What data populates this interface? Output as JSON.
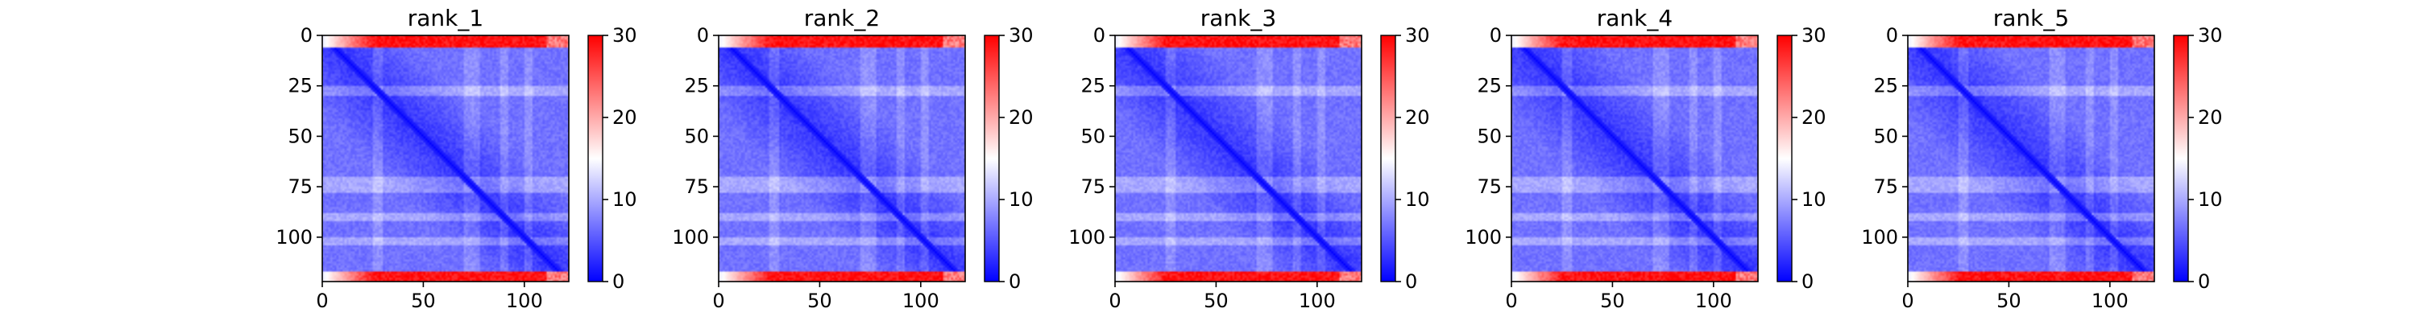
{
  "chart_data": [
    {
      "type": "heatmap",
      "title": "rank_1",
      "xlabel": "",
      "ylabel": "",
      "x_ticks": [
        0,
        50,
        100
      ],
      "y_ticks": [
        0,
        25,
        50,
        75,
        100
      ],
      "xlim": [
        0,
        122
      ],
      "ylim": [
        122,
        0
      ],
      "colorbar": {
        "range": [
          0,
          30
        ],
        "ticks": [
          0,
          10,
          20,
          30
        ],
        "colormap": "bwr"
      },
      "pattern": {
        "size": 122,
        "diagonal_value": 0,
        "red_rows": [
          [
            0,
            6
          ],
          [
            117,
            122
          ]
        ],
        "light_bands": [
          [
            25,
            30
          ],
          [
            70,
            78
          ],
          [
            88,
            92
          ],
          [
            100,
            104
          ]
        ]
      }
    },
    {
      "type": "heatmap",
      "title": "rank_2",
      "xlabel": "",
      "ylabel": "",
      "x_ticks": [
        0,
        50,
        100
      ],
      "y_ticks": [
        0,
        25,
        50,
        75,
        100
      ],
      "xlim": [
        0,
        122
      ],
      "ylim": [
        122,
        0
      ],
      "colorbar": {
        "range": [
          0,
          30
        ],
        "ticks": [
          0,
          10,
          20,
          30
        ],
        "colormap": "bwr"
      },
      "pattern": {
        "size": 122,
        "diagonal_value": 0,
        "red_rows": [
          [
            0,
            6
          ],
          [
            117,
            122
          ]
        ],
        "light_bands": [
          [
            25,
            30
          ],
          [
            70,
            78
          ],
          [
            88,
            92
          ],
          [
            100,
            104
          ]
        ]
      }
    },
    {
      "type": "heatmap",
      "title": "rank_3",
      "xlabel": "",
      "ylabel": "",
      "x_ticks": [
        0,
        50,
        100
      ],
      "y_ticks": [
        0,
        25,
        50,
        75,
        100
      ],
      "xlim": [
        0,
        122
      ],
      "ylim": [
        122,
        0
      ],
      "colorbar": {
        "range": [
          0,
          30
        ],
        "ticks": [
          0,
          10,
          20,
          30
        ],
        "colormap": "bwr"
      },
      "pattern": {
        "size": 122,
        "diagonal_value": 0,
        "red_rows": [
          [
            0,
            6
          ],
          [
            117,
            122
          ]
        ],
        "light_bands": [
          [
            25,
            30
          ],
          [
            70,
            78
          ],
          [
            88,
            92
          ],
          [
            100,
            104
          ]
        ]
      }
    },
    {
      "type": "heatmap",
      "title": "rank_4",
      "xlabel": "",
      "ylabel": "",
      "x_ticks": [
        0,
        50,
        100
      ],
      "y_ticks": [
        0,
        25,
        50,
        75,
        100
      ],
      "xlim": [
        0,
        122
      ],
      "ylim": [
        122,
        0
      ],
      "colorbar": {
        "range": [
          0,
          30
        ],
        "ticks": [
          0,
          10,
          20,
          30
        ],
        "colormap": "bwr"
      },
      "pattern": {
        "size": 122,
        "diagonal_value": 0,
        "red_rows": [
          [
            0,
            6
          ],
          [
            117,
            122
          ]
        ],
        "light_bands": [
          [
            25,
            30
          ],
          [
            70,
            78
          ],
          [
            88,
            92
          ],
          [
            100,
            104
          ]
        ]
      }
    },
    {
      "type": "heatmap",
      "title": "rank_5",
      "xlabel": "",
      "ylabel": "",
      "x_ticks": [
        0,
        50,
        100
      ],
      "y_ticks": [
        0,
        25,
        50,
        75,
        100
      ],
      "xlim": [
        0,
        122
      ],
      "ylim": [
        122,
        0
      ],
      "colorbar": {
        "range": [
          0,
          30
        ],
        "ticks": [
          0,
          10,
          20,
          30
        ],
        "colormap": "bwr"
      },
      "pattern": {
        "size": 122,
        "diagonal_value": 0,
        "red_rows": [
          [
            0,
            6
          ],
          [
            117,
            122
          ]
        ],
        "light_bands": [
          [
            25,
            30
          ],
          [
            70,
            78
          ],
          [
            88,
            92
          ],
          [
            100,
            104
          ]
        ]
      }
    }
  ]
}
